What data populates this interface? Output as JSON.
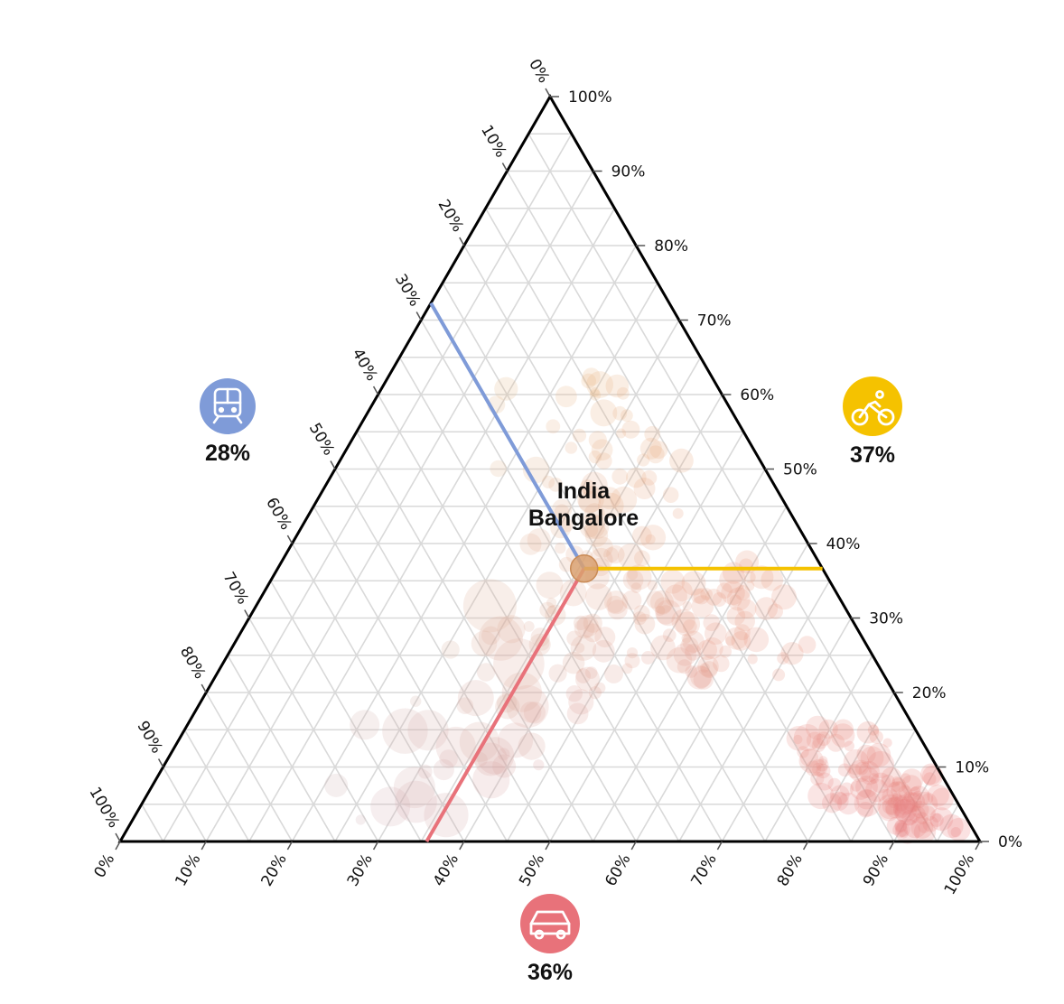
{
  "chart_data": {
    "type": "ternary-scatter",
    "axes": {
      "left": {
        "name": "public transport",
        "icon": "train-icon",
        "color": "#7f9bd8",
        "ticks": [
          "0%",
          "10%",
          "20%",
          "30%",
          "40%",
          "50%",
          "60%",
          "70%",
          "80%",
          "90%",
          "100%"
        ]
      },
      "bottom": {
        "name": "car",
        "icon": "car-icon",
        "color": "#e8727a",
        "ticks": [
          "0%",
          "10%",
          "20%",
          "30%",
          "40%",
          "50%",
          "60%",
          "70%",
          "80%",
          "90%",
          "100%"
        ]
      },
      "right": {
        "name": "bike",
        "icon": "bike-icon",
        "color": "#f5c200",
        "ticks": [
          "0%",
          "10%",
          "20%",
          "30%",
          "40%",
          "50%",
          "60%",
          "70%",
          "80%",
          "90%",
          "100%"
        ]
      }
    },
    "highlight": {
      "country": "India",
      "city": "Bangalore",
      "public_transport": 28,
      "car": 36,
      "bike": 37,
      "public_transport_label": "28%",
      "car_label": "36%",
      "bike_label": "37%"
    },
    "grid": true
  }
}
